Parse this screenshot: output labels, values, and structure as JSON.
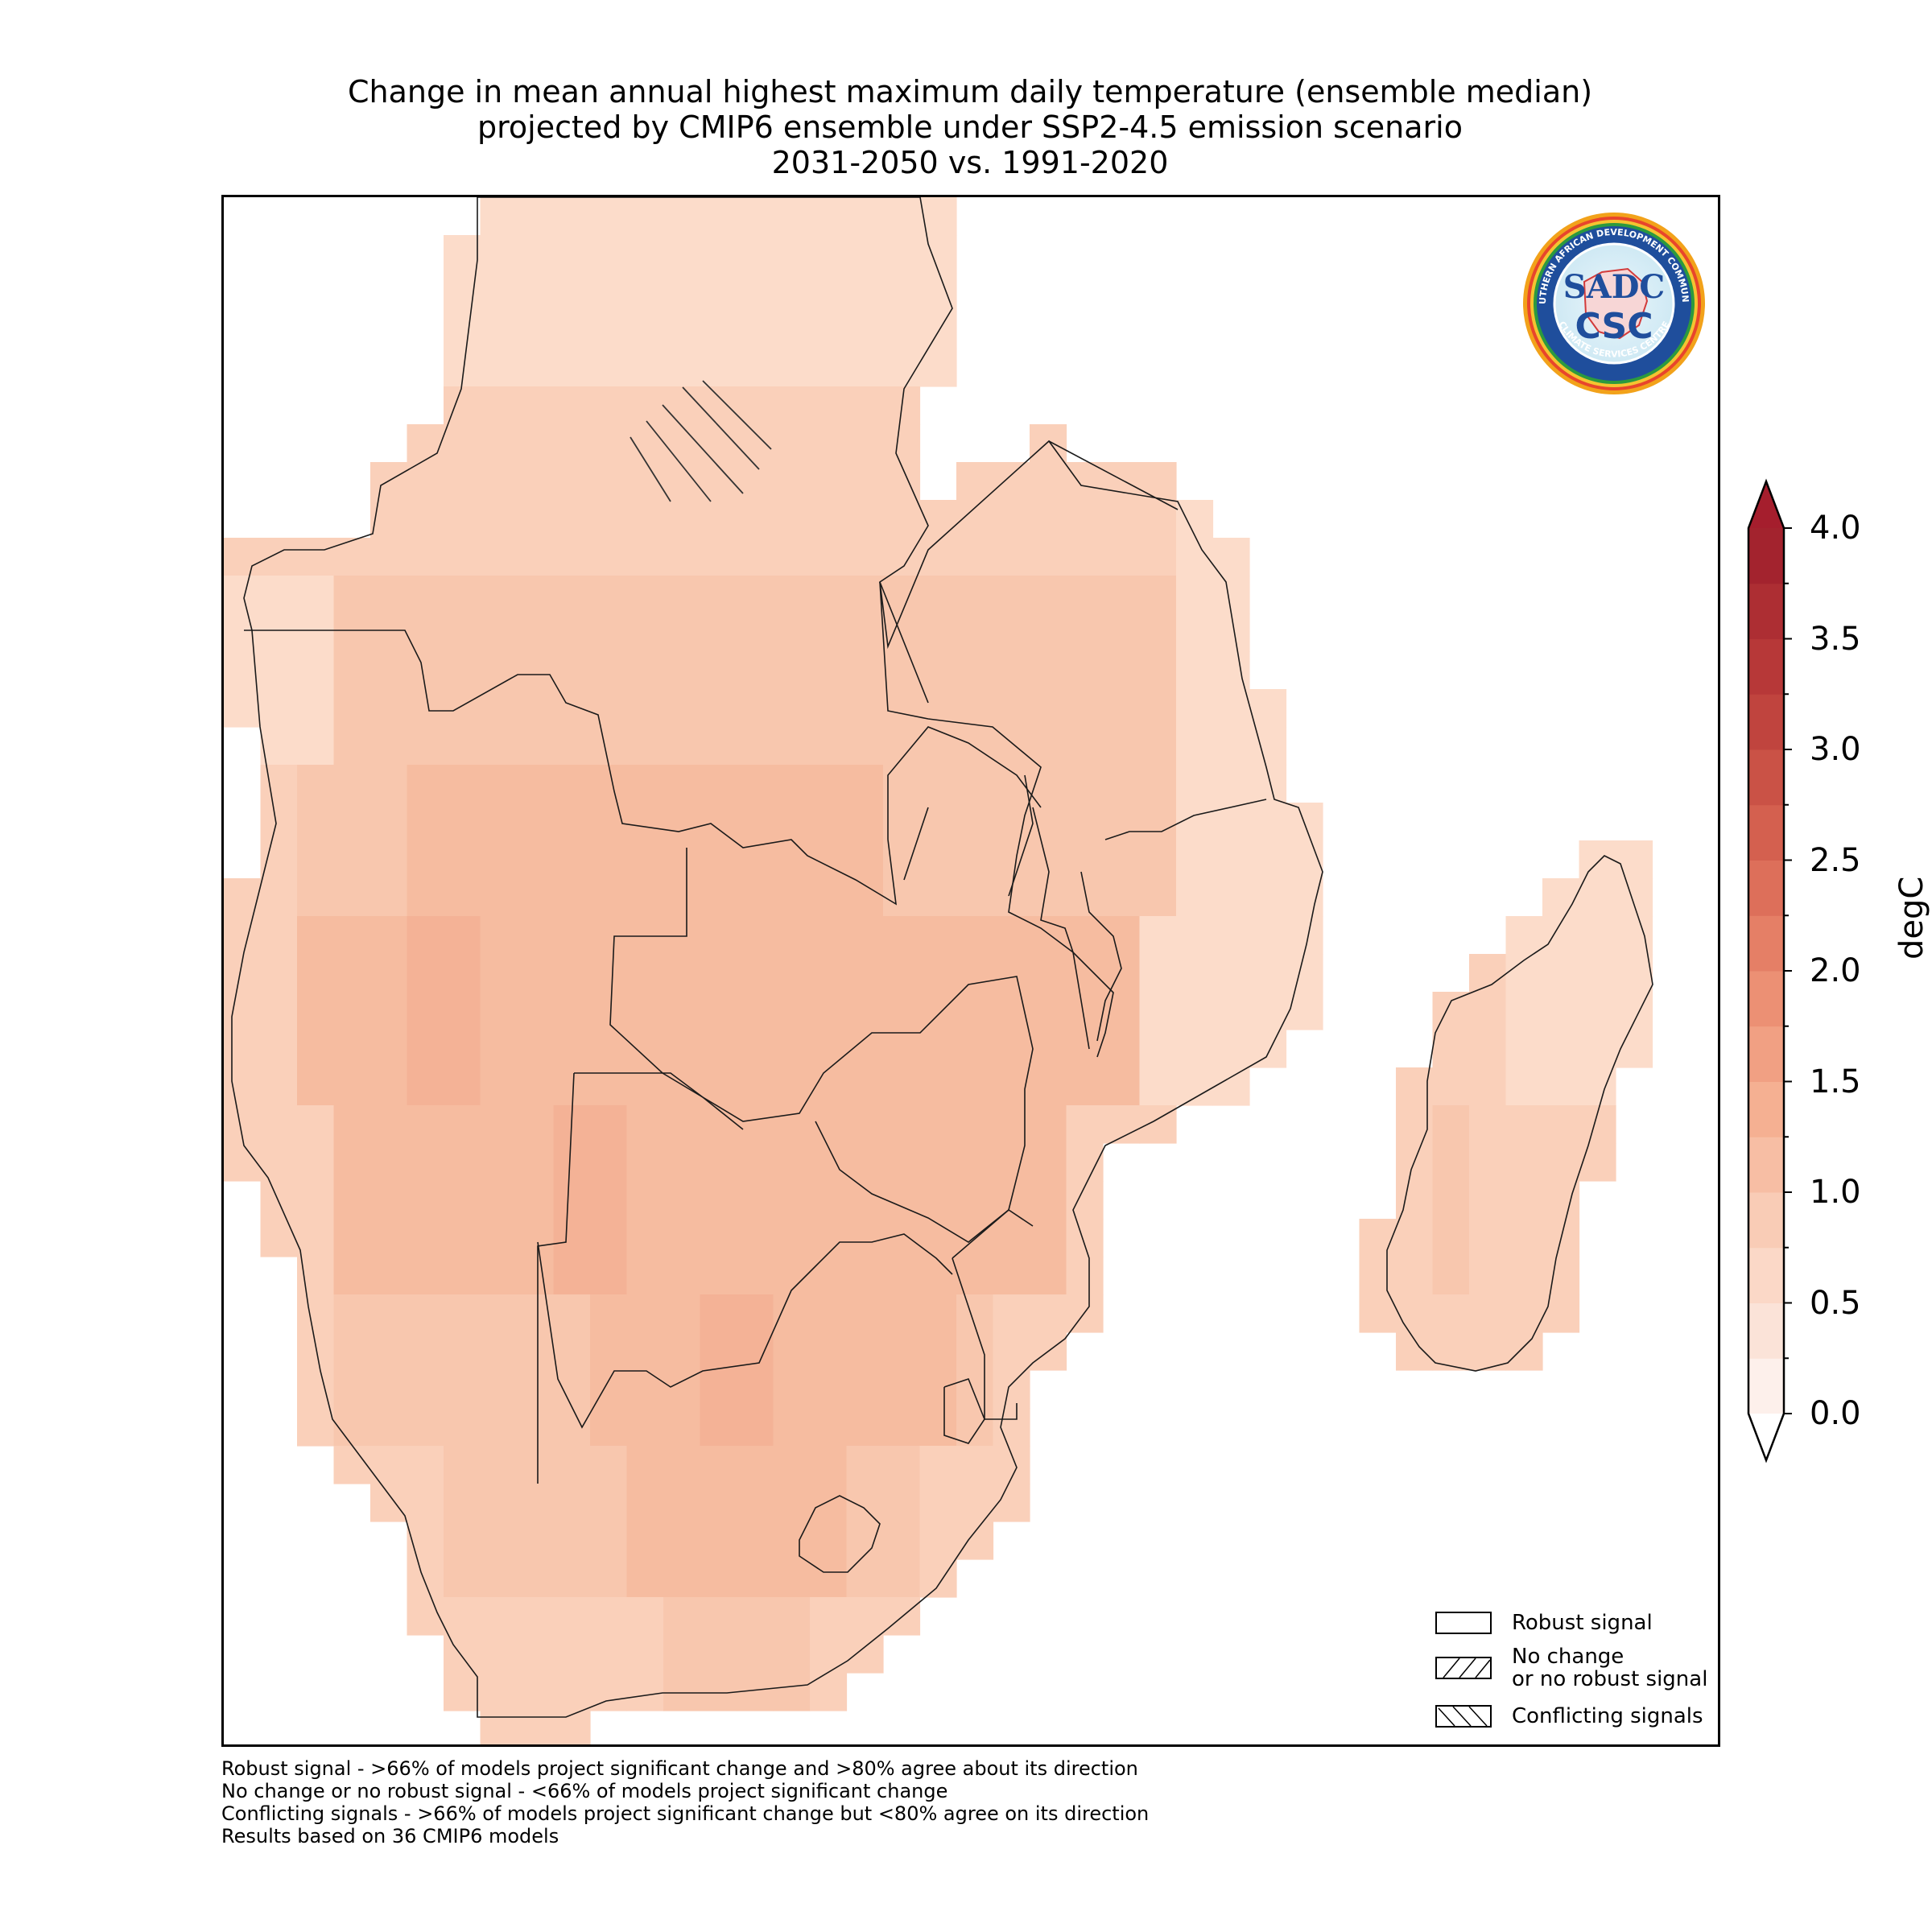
{
  "title": {
    "line1": "Change in mean annual highest maximum daily temperature (ensemble median)",
    "line2": "projected by CMIP6 ensemble under SSP2-4.5 emission scenario",
    "line3": "2031-2050 vs. 1991-2020"
  },
  "colorbar": {
    "unit_label": "degC",
    "ticks": [
      "0.0",
      "0.5",
      "1.0",
      "1.5",
      "2.0",
      "2.5",
      "3.0",
      "3.5",
      "4.0"
    ],
    "range": [
      0.0,
      4.0
    ],
    "levels": [
      0,
      0.25,
      0.5,
      0.75,
      1.0,
      1.25,
      1.5,
      1.75,
      2.0,
      2.25,
      2.5,
      2.75,
      3.0,
      3.25,
      3.5,
      3.75,
      4.0
    ],
    "colors": [
      "#fdf0eb",
      "#fbe3d8",
      "#fbd8c7",
      "#f9ccb6",
      "#f7bea4",
      "#f5b092",
      "#f1a083",
      "#ec9074",
      "#e57f66",
      "#dd6f5a",
      "#d4604f",
      "#ca5246",
      "#c0443e",
      "#b73838",
      "#ad2e33",
      "#a3232e"
    ],
    "extend": "both",
    "over_color": "#a51e2d",
    "under_color": "#ffffff"
  },
  "map": {
    "region": "Southern Africa (SADC)",
    "fill_levels": {
      "l1": "#fcdcca",
      "l2": "#fad0ba",
      "l3": "#f8c7ae",
      "l4": "#f6bca0",
      "l5": "#f4b296",
      "l6": "#f1a688"
    },
    "hatch_region": "conflicting signals patch over northern DRC"
  },
  "legend": {
    "robust": "Robust signal",
    "no_change_line1": "No change",
    "no_change_line2": "or no robust signal",
    "conflicting": "Conflicting signals"
  },
  "footnotes": {
    "line1": "Robust signal - >66% of models project significant change and >80% agree about its direction",
    "line2": "No change or no robust signal - <66% of models project significant change",
    "line3": "Conflicting signals - >66% of models project significant change but <80% agree on its direction",
    "line4": "Results based on 36 CMIP6 models"
  },
  "logo": {
    "text_top": "SOUTHERN AFRICAN DEVELOPMENT COMMUNITY",
    "text_mid": "SADC",
    "text_main": "CSC",
    "text_bottom": "CLIMATE SERVICES CENTRE"
  }
}
